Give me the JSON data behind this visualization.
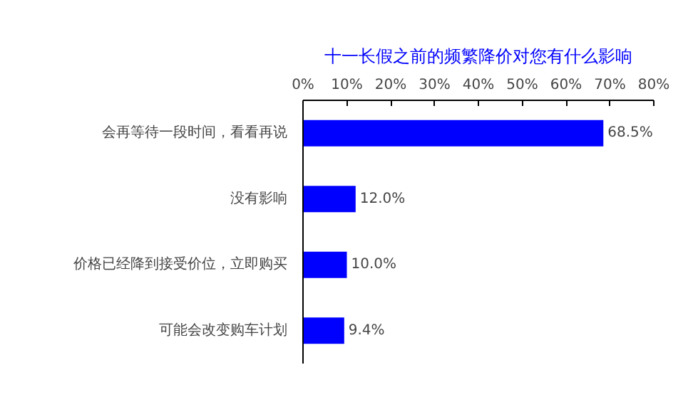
{
  "chart_data": {
    "type": "bar",
    "orientation": "horizontal",
    "title": "十一长假之前的频繁降价对您有什么影响",
    "categories": [
      "会再等待一段时间，看看再说",
      "没有影响",
      "价格已经降到接受价位，立即购买",
      "可能会改变购车计划"
    ],
    "values": [
      68.5,
      12.0,
      10.0,
      9.4
    ],
    "value_labels": [
      "68.5%",
      "12.0%",
      "10.0%",
      "9.4%"
    ],
    "color": "#0000ff",
    "xlim": [
      0,
      80
    ],
    "xticks": [
      {
        "value": 0,
        "label": "0%"
      },
      {
        "value": 10,
        "label": "10%"
      },
      {
        "value": 20,
        "label": "20%"
      },
      {
        "value": 30,
        "label": "30%"
      },
      {
        "value": 40,
        "label": "40%"
      },
      {
        "value": 50,
        "label": "50%"
      },
      {
        "value": 60,
        "label": "60%"
      },
      {
        "value": 70,
        "label": "70%"
      },
      {
        "value": 80,
        "label": "80%"
      }
    ],
    "grid": false
  }
}
